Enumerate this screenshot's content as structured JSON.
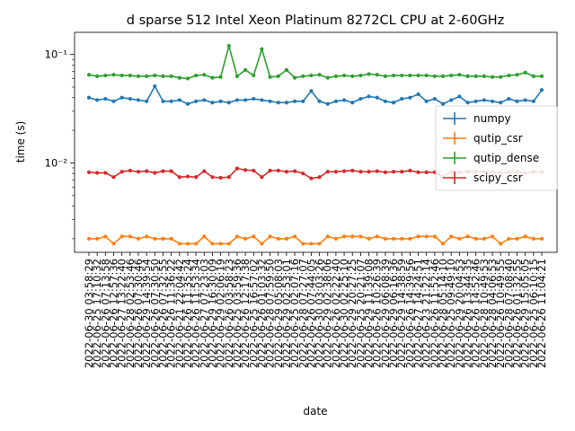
{
  "chart_data": {
    "type": "line",
    "title": "d sparse 512 Intel Xeon Platinum 8272CL CPU at 2-60GHz",
    "xlabel": "date",
    "ylabel": "time (s)",
    "yscale": "log",
    "ylim": [
      0.0015,
      0.16
    ],
    "yticks": [
      {
        "value": 0.01,
        "label": "10⁻²"
      },
      {
        "value": 0.1,
        "label": "10⁻¹"
      }
    ],
    "legend_position": "center-right",
    "grid": false,
    "categories": [
      "2022-06-30 03:58:29",
      "2022-06-25 17:10:32",
      "2022-06-26 07:13:58",
      "2022-06-26 12:57:36",
      "2022-06-27 13:22:40",
      "2022-06-28 02:53:46",
      "2022-06-26 07:30:46",
      "2022-06-29 14:39:54",
      "2022-06-26 07:30:50",
      "2022-06-26 07:32:55",
      "2022-06-26 11:36:22",
      "2022-06-21 22:04:42",
      "2022-06-26 11:35:24",
      "2022-06-26 11:53:34",
      "2022-06-27 07:23:03",
      "2022-06-29 16:30:09",
      "2022-06-29 02:06:19",
      "2022-06-26 03:58:23",
      "2022-06-25 03:59:36",
      "2022-06-26 12:17:38",
      "2022-06-25 16:57:02",
      "2022-06-26 01:03:32",
      "2022-06-28 07:59:50",
      "2022-06-29 05:08:03",
      "2022-06-29 02:53:01",
      "2022-06-25 02:07:16",
      "2022-06-28 07:27:07",
      "2022-06-26 07:44:05",
      "2022-06-30 03:03:26",
      "2022-06-29 02:38:06",
      "2022-06-26 02:22:40",
      "2022-06-30 02:25:10",
      "2022-06-29 20:27:25",
      "2022-06-25 20:21:07",
      "2022-06-29 11:39:08",
      "2022-06-26 10:26:39",
      "2022-06-29 06:08:39",
      "2022-06-29 06:16:36",
      "2022-06-29 14:38:59",
      "2022-06-26 14:39:56",
      "2022-06-27 14:24:51",
      "2022-06-23 21:22:14",
      "2022-06-26 11:52:46",
      "2022-06-28 05:14:10",
      "2022-06-25 09:49:10",
      "2022-06-29 20:04:53",
      "2022-06-26 13:44:35",
      "2022-06-26 14:52:46",
      "2022-06-28 10:49:53",
      "2022-06-28 04:06:53",
      "2022-06-26 10:49:55",
      "2022-06-28 07:08:40",
      "2022-06-26 01:32:55",
      "2022-06-29 15:05:05",
      "2022-06-25 06:10:15",
      "2022-06-26 11:04:21"
    ],
    "series": [
      {
        "name": "numpy",
        "color": "#1f77b4",
        "values": [
          0.04,
          0.038,
          0.039,
          0.037,
          0.04,
          0.039,
          0.038,
          0.037,
          0.051,
          0.037,
          0.037,
          0.038,
          0.035,
          0.037,
          0.038,
          0.036,
          0.037,
          0.036,
          0.038,
          0.038,
          0.039,
          0.038,
          0.037,
          0.036,
          0.036,
          0.037,
          0.037,
          0.046,
          0.037,
          0.035,
          0.037,
          0.038,
          0.036,
          0.039,
          0.041,
          0.04,
          0.037,
          0.036,
          0.039,
          0.04,
          0.043,
          0.037,
          0.039,
          0.035,
          0.038,
          0.041,
          0.036,
          0.037,
          0.038,
          0.037,
          0.036,
          0.039,
          0.037,
          0.038,
          0.037,
          0.047
        ]
      },
      {
        "name": "qutip_csr",
        "color": "#ff7f0e",
        "values": [
          0.002,
          0.002,
          0.0021,
          0.0018,
          0.0021,
          0.0021,
          0.002,
          0.0021,
          0.002,
          0.002,
          0.002,
          0.0018,
          0.0018,
          0.0018,
          0.0021,
          0.0018,
          0.0018,
          0.0018,
          0.0021,
          0.002,
          0.0021,
          0.0018,
          0.0021,
          0.002,
          0.002,
          0.0021,
          0.0018,
          0.0018,
          0.0018,
          0.0021,
          0.002,
          0.0021,
          0.0021,
          0.0021,
          0.002,
          0.0021,
          0.002,
          0.002,
          0.002,
          0.002,
          0.0021,
          0.0021,
          0.0021,
          0.0018,
          0.0021,
          0.002,
          0.0021,
          0.002,
          0.002,
          0.0021,
          0.0018,
          0.002,
          0.002,
          0.0021,
          0.002,
          0.002
        ]
      },
      {
        "name": "qutip_dense",
        "color": "#2ca02c",
        "values": [
          0.065,
          0.063,
          0.064,
          0.065,
          0.064,
          0.064,
          0.063,
          0.063,
          0.064,
          0.063,
          0.063,
          0.061,
          0.06,
          0.064,
          0.065,
          0.061,
          0.062,
          0.12,
          0.063,
          0.072,
          0.064,
          0.112,
          0.062,
          0.063,
          0.072,
          0.061,
          0.063,
          0.064,
          0.065,
          0.061,
          0.063,
          0.064,
          0.063,
          0.064,
          0.066,
          0.065,
          0.063,
          0.064,
          0.064,
          0.064,
          0.064,
          0.064,
          0.063,
          0.063,
          0.064,
          0.065,
          0.063,
          0.063,
          0.063,
          0.062,
          0.062,
          0.064,
          0.065,
          0.068,
          0.063,
          0.063
        ]
      },
      {
        "name": "scipy_csr",
        "color": "#d62728",
        "values": [
          0.0082,
          0.0081,
          0.0081,
          0.0074,
          0.0083,
          0.0085,
          0.0083,
          0.0084,
          0.0081,
          0.0084,
          0.0084,
          0.0074,
          0.0075,
          0.0074,
          0.0084,
          0.0074,
          0.0073,
          0.0074,
          0.0089,
          0.0086,
          0.0085,
          0.0074,
          0.0085,
          0.0085,
          0.0083,
          0.0084,
          0.008,
          0.0072,
          0.0074,
          0.0083,
          0.0083,
          0.0084,
          0.0085,
          0.0083,
          0.0083,
          0.0084,
          0.0082,
          0.0083,
          0.0083,
          0.0085,
          0.0082,
          0.0082,
          0.0082,
          0.0074,
          0.0083,
          0.0082,
          0.0083,
          0.0083,
          0.0083,
          0.0082,
          0.0081,
          0.0082,
          0.0083,
          0.0081,
          0.0083,
          0.0082
        ]
      }
    ]
  }
}
